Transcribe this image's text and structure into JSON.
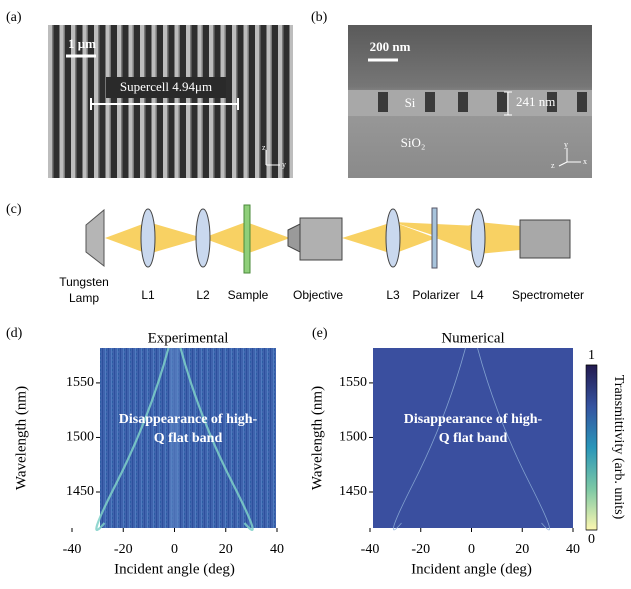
{
  "panels": {
    "a": {
      "label": "(a)",
      "scale_bar": "1 μm",
      "supercell": "Supercell 4.94μm",
      "axes": [
        "z",
        "y"
      ]
    },
    "b": {
      "label": "(b)",
      "scale_bar": "200 nm",
      "layer_top": "Si",
      "thickness": "241 nm",
      "layer_bottom": "SiO₂",
      "axes": [
        "z",
        "y",
        "x"
      ]
    },
    "c": {
      "label": "(c)",
      "parts": [
        "Tungsten Lamp",
        "L1",
        "L2",
        "Sample",
        "Objective",
        "L3",
        "Polarizer",
        "L4",
        "Spectrometer"
      ]
    },
    "d": {
      "label": "(d)"
    },
    "e": {
      "label": "(e)"
    }
  },
  "chart_data": [
    {
      "type": "heatmap",
      "title": "Experimental",
      "xlabel": "Incident angle (deg)",
      "ylabel": "Wavelength (nm)",
      "xlim": [
        -40,
        40
      ],
      "xticks": [
        -40,
        -20,
        0,
        20,
        40
      ],
      "ylim": [
        1417,
        1582
      ],
      "yticks": [
        1450,
        1500,
        1550
      ],
      "annotation": [
        "Disappearance of high-",
        "Q flat band"
      ]
    },
    {
      "type": "heatmap",
      "title": "Numerical",
      "xlabel": "Incident angle (deg)",
      "ylabel": "Wavelength (nm)",
      "xlim": [
        -40,
        40
      ],
      "xticks": [
        -40,
        -20,
        0,
        20,
        40
      ],
      "ylim": [
        1417,
        1582
      ],
      "yticks": [
        1450,
        1500,
        1550
      ],
      "annotation": [
        "Disappearance of high-",
        "Q flat band"
      ],
      "colorbar": {
        "label": "Transmittivity  (arb. units)",
        "lim": [
          0,
          1
        ],
        "ticks": [
          0,
          1
        ]
      }
    }
  ]
}
